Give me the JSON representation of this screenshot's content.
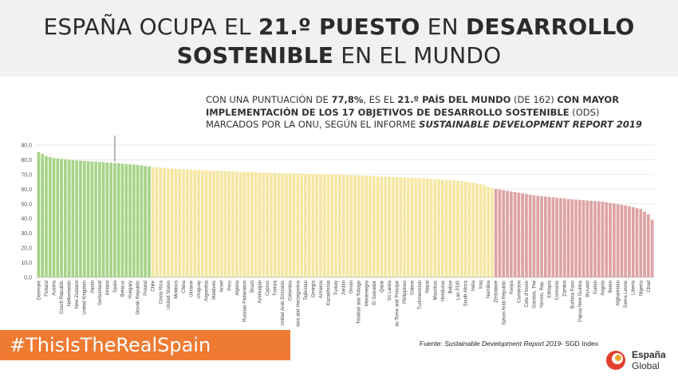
{
  "title": {
    "line1_a": "ESPAÑA OCUPA EL ",
    "line1_b": "21.º PUESTO",
    "line1_c": " EN ",
    "line1_d": "DESARROLLO",
    "line2_a": "SOSTENIBLE",
    "line2_b": " EN EL MUNDO"
  },
  "subtitle": {
    "a": "CON UNA PUNTUACIÓN DE ",
    "b": "77,8%",
    "c": ", ES EL ",
    "d": "21.º PAÍS DEL MUNDO",
    "e": " (DE 162) ",
    "f": "CON MAYOR IMPLEMENTACIÓN DE LOS 17 OBJETIVOS DE DESARROLLO SOSTENIBLE",
    "g": " (ODS) MARCADOS POR LA ONU, SEGÚN EL INFORME ",
    "h": "SUSTAINABLE DEVELOPMENT REPORT 2019"
  },
  "hashtag": "#ThisIsTheRealSpain",
  "source": {
    "prefix": "Fuente: ",
    "report": "Sustainable Development Report 2019",
    "suffix": "- SGD Index"
  },
  "logo": {
    "line1": "España",
    "line2": "Global"
  },
  "colors": {
    "high": "#a6d387",
    "mid": "#f5e7a1",
    "low": "#dea2a3",
    "accent": "#ef7a32",
    "grid": "#e2e2e2"
  },
  "chart_data": {
    "type": "bar",
    "ylim": [
      0,
      90
    ],
    "yticks": [
      "0,0",
      "10,0",
      "20,0",
      "30,0",
      "40,0",
      "50,0",
      "60,0",
      "70,0",
      "80,0",
      "90,0"
    ],
    "grid": true,
    "groups": {
      "high_count": 26,
      "mid_count": 68
    },
    "labels": [
      "Denmark",
      "Finland",
      "Austria",
      "Czech Republic",
      "Netherlands",
      "New Zealand",
      "United Kingdom",
      "Japan",
      "Switzerland",
      "Ireland",
      "Spain",
      "Belarus",
      "Hungary",
      "Slovak Republic",
      "Poland",
      "Chile",
      "Costa Rica",
      "United States",
      "Moldova",
      "China",
      "Ukraine",
      "Uruguay",
      "Argentina",
      "Maldives",
      "Israel",
      "Peru",
      "Algeria",
      "Russian Federation",
      "Brazil",
      "Azerbaijan",
      "Cyprus",
      "Tunisia",
      "United Arab Emirates",
      "Colombia",
      "Bosnia and Herzegovina",
      "Tajikistan",
      "Georgia",
      "Armenia",
      "Kazakhstan",
      "Turkey",
      "Jordan",
      "Oman",
      "Trinidad and Tobago",
      "Montenegro",
      "El Salvador",
      "Qatar",
      "Sri Lanka",
      "Sao Tome and Principe",
      "Philippines",
      "Gabon",
      "Turkmenistan",
      "Nepal",
      "Mauritius",
      "Honduras",
      "Belize",
      "Lao PDR",
      "South Africa",
      "India",
      "Iraq",
      "Namibia",
      "Zimbabwe",
      "Syrian Arab Republic",
      "Kenya",
      "Cameroon",
      "Cote d'Ivoire",
      "Gambia, The",
      "Yemen, Rep.",
      "Ethiopia",
      "Comoros",
      "Zambia",
      "Burkina Faso",
      "Papua New Guinea",
      "Burundi",
      "Sudan",
      "Angola",
      "Benin",
      "Afghanistan",
      "Sierra Leone",
      "Liberia",
      "Nigeria",
      "Chad"
    ]
  }
}
